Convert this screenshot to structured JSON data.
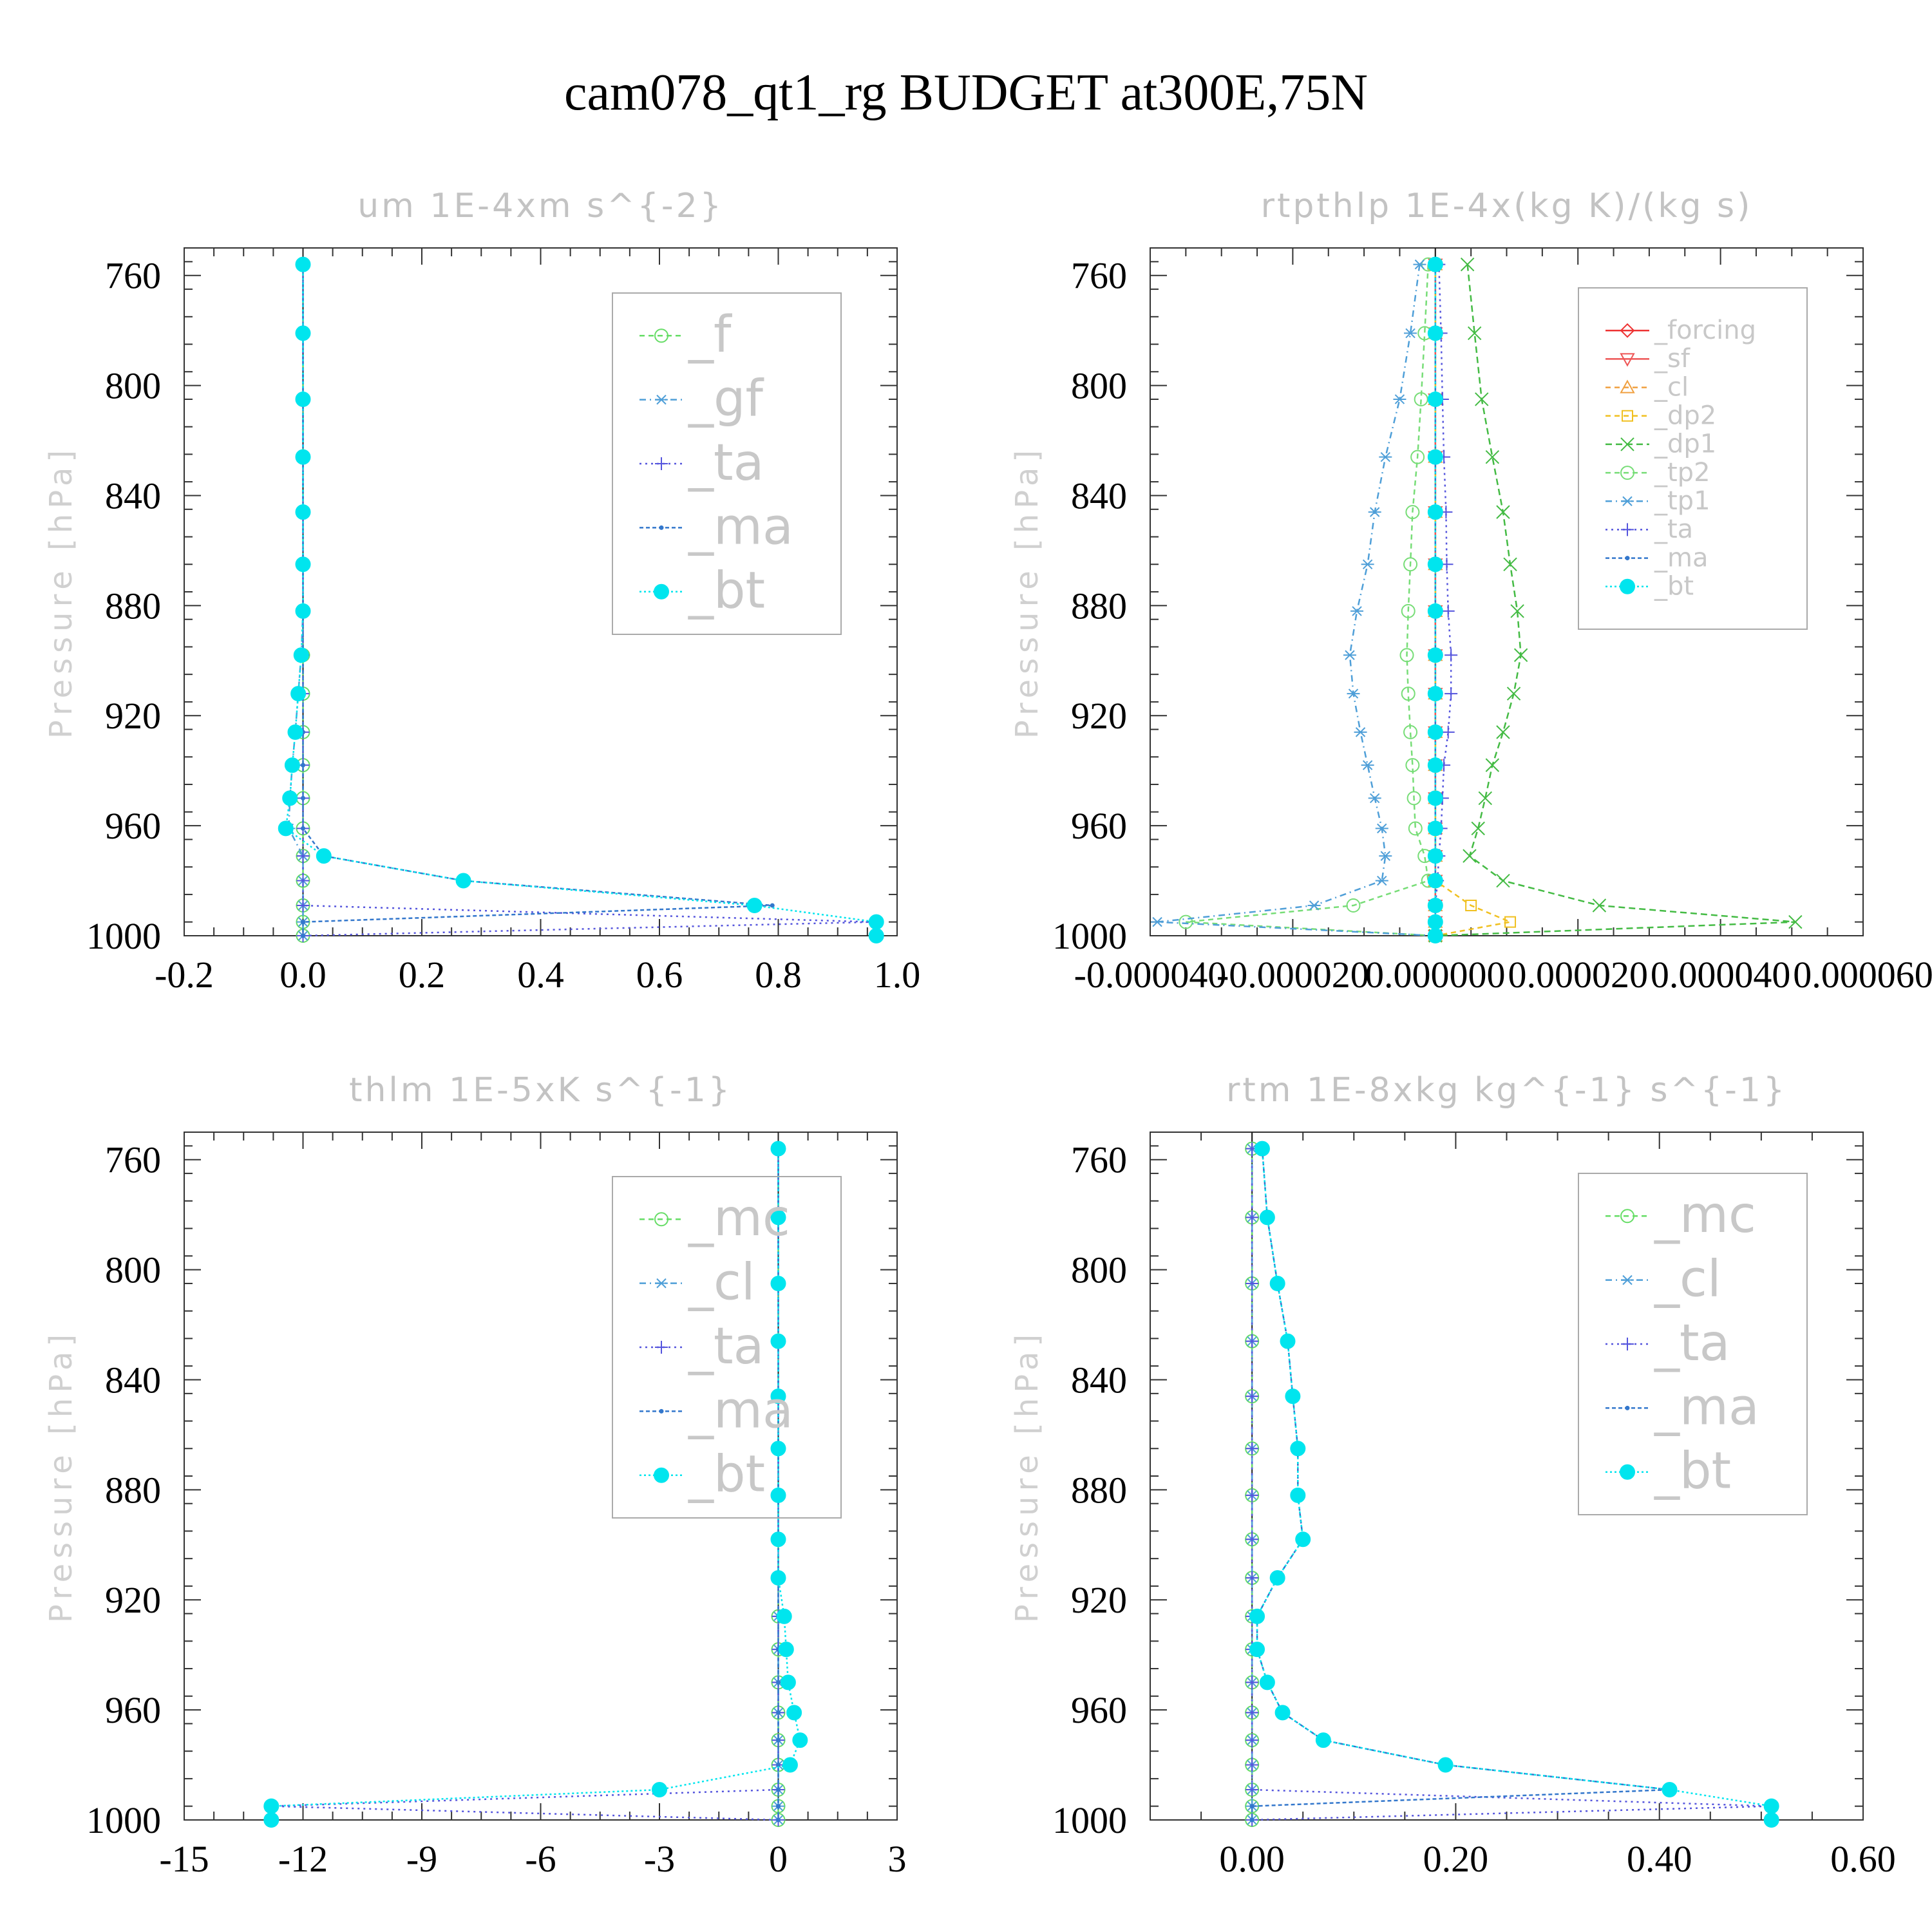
{
  "figure": {
    "title": "cam078_qt1_rg  BUDGET at300E,75N"
  },
  "chart_data": [
    {
      "type": "line",
      "title": "um   1E-4xm s^{-2}",
      "ylabel": "Pressure [hPa]",
      "xlim": [
        -0.2,
        1.0
      ],
      "ylim": [
        1000,
        750
      ],
      "xticks": [
        -0.2,
        0.0,
        0.2,
        0.4,
        0.6,
        0.8,
        1.0
      ],
      "xtick_labels": [
        "-0.2",
        "0.0",
        "0.2",
        "0.4",
        "0.6",
        "0.8",
        "1.0"
      ],
      "yticks": [
        760,
        800,
        840,
        880,
        920,
        960,
        1000
      ],
      "ytick_labels": [
        "760",
        "800",
        "840",
        "880",
        "920",
        "960",
        "1000"
      ],
      "legend_position": "upper-right",
      "legend_font": 78,
      "levels": [
        756,
        781,
        805,
        826,
        846,
        865,
        882,
        898,
        912,
        926,
        938,
        950,
        961,
        971,
        980,
        989,
        995,
        1000
      ],
      "series": [
        {
          "name": "_f",
          "color": "#66dd66",
          "marker": "circle",
          "dash": "8,6",
          "x": [
            0,
            0,
            0,
            0,
            0,
            0,
            0,
            0,
            0,
            0,
            0,
            0,
            0,
            0,
            0,
            0,
            0,
            0
          ]
        },
        {
          "name": "_gf",
          "color": "#4f9fd8",
          "marker": "asterisk",
          "dash": "10,6,2,6",
          "x": [
            0,
            0,
            0,
            0,
            0,
            0,
            0,
            -0.003,
            -0.008,
            -0.013,
            -0.018,
            -0.022,
            -0.024,
            0,
            0,
            0,
            0,
            0
          ]
        },
        {
          "name": "_ta",
          "color": "#5555dd",
          "marker": "plus",
          "dash": "3,6",
          "x": [
            0,
            0,
            0,
            0,
            0,
            0,
            0,
            0,
            0,
            0,
            0,
            0,
            0,
            0,
            0,
            0,
            0.96,
            0
          ]
        },
        {
          "name": "_ma",
          "color": "#3377cc",
          "marker": "dot",
          "dash": "6,4",
          "x": [
            0,
            0,
            0,
            0,
            0,
            0,
            0,
            0,
            0,
            0,
            0,
            0,
            0,
            0.035,
            0.27,
            0.79,
            0,
            0
          ]
        },
        {
          "name": "_bt",
          "color": "#00e5ee",
          "marker": "filled",
          "dash": "3,4",
          "x": [
            0,
            0,
            0,
            0,
            0,
            0,
            0,
            -0.003,
            -0.008,
            -0.013,
            -0.018,
            -0.022,
            -0.029,
            0.035,
            0.27,
            0.76,
            0.965,
            0.965
          ]
        }
      ]
    },
    {
      "type": "line",
      "title": "rtpthlp   1E-4x(kg K)/(kg s)",
      "ylabel": "Pressure [hPa]",
      "xlim": [
        -4e-05,
        6e-05
      ],
      "ylim": [
        1000,
        750
      ],
      "xticks": [
        -4e-05,
        -2e-05,
        0.0,
        2e-05,
        4e-05,
        6e-05
      ],
      "xtick_labels": [
        "-0.000040",
        "-0.000020",
        "0.000000",
        "0.000020",
        "0.000040",
        "0.000060"
      ],
      "yticks": [
        760,
        800,
        840,
        880,
        920,
        960,
        1000
      ],
      "ytick_labels": [
        "760",
        "800",
        "840",
        "880",
        "920",
        "960",
        "1000"
      ],
      "legend_position": "upper-right",
      "legend_font": 40,
      "levels": [
        756,
        781,
        805,
        826,
        846,
        865,
        882,
        898,
        912,
        926,
        938,
        950,
        961,
        971,
        980,
        989,
        995,
        1000
      ],
      "series": [
        {
          "name": "_forcing",
          "color": "#ee3333",
          "marker": "diamond",
          "dash": "",
          "x": [
            0,
            0,
            0,
            0,
            0,
            0,
            0,
            0,
            0,
            0,
            0,
            0,
            0,
            0,
            0,
            0,
            0,
            0
          ]
        },
        {
          "name": "_sf",
          "color": "#ee5555",
          "marker": "tri-down",
          "dash": "",
          "x": [
            0,
            0,
            0,
            0,
            0,
            0,
            0,
            0,
            0,
            0,
            0,
            0,
            0,
            0,
            0,
            0,
            0,
            0
          ]
        },
        {
          "name": "_cl",
          "color": "#f0a040",
          "marker": "tri-up",
          "dash": "8,6",
          "x": [
            0,
            0,
            0,
            0,
            0,
            0,
            0,
            0,
            0,
            0,
            0,
            0,
            0,
            0,
            0,
            0,
            0,
            0
          ]
        },
        {
          "name": "_dp2",
          "color": "#f0c020",
          "marker": "square",
          "dash": "8,6",
          "x": [
            0,
            0,
            0,
            0,
            0,
            0,
            0,
            0,
            0,
            0,
            0,
            0,
            0,
            0,
            0,
            5e-06,
            1.05e-05,
            0
          ]
        },
        {
          "name": "_dp1",
          "color": "#44bb44",
          "marker": "x",
          "dash": "10,6",
          "x": [
            4.5e-06,
            5.5e-06,
            6.5e-06,
            8e-06,
            9.5e-06,
            1.05e-05,
            1.15e-05,
            1.2e-05,
            1.1e-05,
            9.5e-06,
            8e-06,
            7e-06,
            6e-06,
            4.8e-06,
            9.5e-06,
            2.3e-05,
            5.05e-05,
            0
          ]
        },
        {
          "name": "_tp2",
          "color": "#77dd77",
          "marker": "circle",
          "dash": "8,6",
          "x": [
            -1e-06,
            -1.5e-06,
            -2e-06,
            -2.5e-06,
            -3.2e-06,
            -3.5e-06,
            -3.8e-06,
            -4e-06,
            -3.8e-06,
            -3.5e-06,
            -3.2e-06,
            -3e-06,
            -2.8e-06,
            -1.5e-06,
            -1e-06,
            -1.15e-05,
            -3.5e-05,
            0
          ]
        },
        {
          "name": "_tp1",
          "color": "#4f9fd8",
          "marker": "asterisk",
          "dash": "10,6,2,6",
          "x": [
            -2.2e-06,
            -3.5e-06,
            -5e-06,
            -7e-06,
            -8.5e-06,
            -9.5e-06,
            -1.1e-05,
            -1.2e-05,
            -1.15e-05,
            -1.05e-05,
            -9.5e-06,
            -8.5e-06,
            -7.5e-06,
            -7e-06,
            -7.5e-06,
            -1.7e-05,
            -3.9e-05,
            0
          ]
        },
        {
          "name": "_ta",
          "color": "#5555dd",
          "marker": "plus",
          "dash": "3,6",
          "x": [
            5e-07,
            8e-07,
            1e-06,
            1.2e-06,
            1.5e-06,
            1.6e-06,
            1.8e-06,
            2.2e-06,
            2.2e-06,
            1.8e-06,
            1.2e-06,
            1e-06,
            8e-07,
            5e-07,
            3e-07,
            0,
            0,
            0
          ]
        },
        {
          "name": "_ma",
          "color": "#3377cc",
          "marker": "dot",
          "dash": "6,4",
          "x": [
            0,
            0,
            0,
            0,
            0,
            0,
            0,
            0,
            0,
            0,
            0,
            0,
            0,
            0,
            0,
            0,
            0,
            0
          ]
        },
        {
          "name": "_bt",
          "color": "#00e5ee",
          "marker": "filled",
          "dash": "3,4",
          "x": [
            0,
            0,
            0,
            0,
            0,
            0,
            0,
            0,
            0,
            0,
            0,
            0,
            0,
            0,
            0,
            0,
            0,
            0
          ]
        }
      ]
    },
    {
      "type": "line",
      "title": "thlm   1E-5xK s^{-1}",
      "ylabel": "Pressure [hPa]",
      "xlim": [
        -15,
        3
      ],
      "ylim": [
        1000,
        750
      ],
      "xticks": [
        -15,
        -12,
        -9,
        -6,
        -3,
        0,
        3
      ],
      "xtick_labels": [
        "-15",
        "-12",
        "-9",
        "-6",
        "-3",
        "0",
        "3"
      ],
      "yticks": [
        760,
        800,
        840,
        880,
        920,
        960,
        1000
      ],
      "ytick_labels": [
        "760",
        "800",
        "840",
        "880",
        "920",
        "960",
        "1000"
      ],
      "legend_position": "upper-right",
      "legend_font": 78,
      "levels": [
        756,
        781,
        805,
        826,
        846,
        865,
        882,
        898,
        912,
        926,
        938,
        950,
        961,
        971,
        980,
        989,
        995,
        1000
      ],
      "series": [
        {
          "name": "_mc",
          "color": "#66dd66",
          "marker": "circle",
          "dash": "8,6",
          "x": [
            0,
            0,
            0,
            0,
            0,
            0,
            0,
            0,
            0,
            0,
            0,
            0,
            0,
            0,
            0,
            0,
            0,
            0
          ]
        },
        {
          "name": "_cl",
          "color": "#4f9fd8",
          "marker": "asterisk",
          "dash": "10,6,2,6",
          "x": [
            0,
            0,
            0,
            0,
            0,
            0,
            0,
            0,
            0,
            0,
            0,
            0,
            0,
            0,
            0,
            0,
            0,
            0
          ]
        },
        {
          "name": "_ta",
          "color": "#5555dd",
          "marker": "plus",
          "dash": "3,6",
          "x": [
            0,
            0,
            0,
            0,
            0,
            0,
            0,
            0,
            0,
            0,
            0,
            0,
            0,
            0,
            0,
            0,
            -12.8,
            0
          ]
        },
        {
          "name": "_ma",
          "color": "#3377cc",
          "marker": "dot",
          "dash": "6,4",
          "x": [
            0,
            0,
            0,
            0,
            0,
            0,
            0,
            0,
            0,
            0,
            0,
            0,
            0,
            0,
            0,
            0,
            0,
            0
          ]
        },
        {
          "name": "_bt",
          "color": "#00e5ee",
          "marker": "filled",
          "dash": "3,4",
          "x": [
            0,
            0,
            0,
            0,
            0,
            0,
            0,
            0,
            0,
            0.15,
            0.2,
            0.25,
            0.4,
            0.55,
            0.3,
            -3.0,
            -12.8,
            -12.8
          ]
        }
      ]
    },
    {
      "type": "line",
      "title": "rtm   1E-8xkg kg^{-1} s^{-1}",
      "ylabel": "Pressure [hPa]",
      "xlim": [
        -0.1,
        0.6
      ],
      "ylim": [
        1000,
        750
      ],
      "xticks": [
        0.0,
        0.2,
        0.4,
        0.6
      ],
      "xtick_labels": [
        "0.00",
        "0.20",
        "0.40",
        "0.60"
      ],
      "yticks": [
        760,
        800,
        840,
        880,
        920,
        960,
        1000
      ],
      "ytick_labels": [
        "760",
        "800",
        "840",
        "880",
        "920",
        "960",
        "1000"
      ],
      "legend_position": "upper-right",
      "legend_font": 78,
      "levels": [
        756,
        781,
        805,
        826,
        846,
        865,
        882,
        898,
        912,
        926,
        938,
        950,
        961,
        971,
        980,
        989,
        995,
        1000
      ],
      "series": [
        {
          "name": "_mc",
          "color": "#66dd66",
          "marker": "circle",
          "dash": "8,6",
          "x": [
            0,
            0,
            0,
            0,
            0,
            0,
            0,
            0,
            0,
            0,
            0,
            0,
            0,
            0,
            0,
            0,
            0,
            0
          ]
        },
        {
          "name": "_cl",
          "color": "#4f9fd8",
          "marker": "asterisk",
          "dash": "10,6,2,6",
          "x": [
            0,
            0,
            0,
            0,
            0,
            0,
            0,
            0,
            0,
            0,
            0,
            0,
            0,
            0,
            0,
            0,
            0,
            0
          ]
        },
        {
          "name": "_ta",
          "color": "#5555dd",
          "marker": "plus",
          "dash": "3,6",
          "x": [
            0,
            0,
            0,
            0,
            0,
            0,
            0,
            0,
            0,
            0,
            0,
            0,
            0,
            0,
            0,
            0,
            0.51,
            0
          ]
        },
        {
          "name": "_ma",
          "color": "#3377cc",
          "marker": "dot",
          "dash": "6,4",
          "x": [
            0.01,
            0.015,
            0.025,
            0.035,
            0.04,
            0.045,
            0.045,
            0.05,
            0.025,
            0.005,
            0.005,
            0.015,
            0.03,
            0.07,
            0.19,
            0.41,
            0,
            0
          ]
        },
        {
          "name": "_bt",
          "color": "#00e5ee",
          "marker": "filled",
          "dash": "3,4",
          "x": [
            0.01,
            0.015,
            0.025,
            0.035,
            0.04,
            0.045,
            0.045,
            0.05,
            0.025,
            0.005,
            0.005,
            0.015,
            0.03,
            0.07,
            0.19,
            0.41,
            0.51,
            0.51
          ]
        }
      ]
    }
  ]
}
